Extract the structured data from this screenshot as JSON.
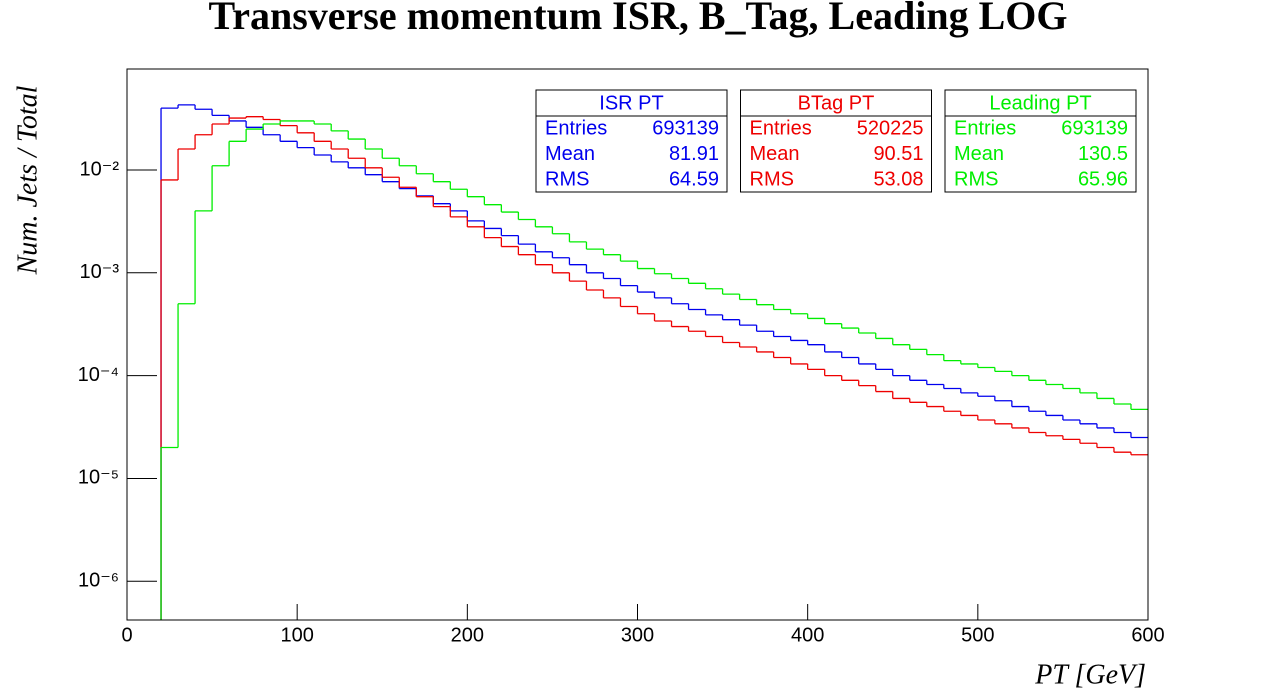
{
  "chart_data": {
    "type": "histogram",
    "title": "Transverse momentum ISR, B_Tag, Leading LOG",
    "x_label": "PT [GeV]",
    "y_label": "Num. Jets / Total",
    "log_y": true,
    "xlim": [
      0,
      600
    ],
    "xticks": [
      0,
      100,
      200,
      300,
      400,
      500,
      600
    ],
    "ylim": [
      4.2e-07,
      0.096
    ],
    "yticks": [
      {
        "value": 1e-06,
        "label": "10⁻⁶"
      },
      {
        "value": 1e-05,
        "label": "10⁻⁵"
      },
      {
        "value": 0.0001,
        "label": "10⁻⁴"
      },
      {
        "value": 0.001,
        "label": "10⁻³"
      },
      {
        "value": 0.01,
        "label": "10⁻²"
      }
    ],
    "stats_labels": [
      "Entries",
      "Mean",
      "RMS"
    ],
    "bins": [
      0,
      10,
      20,
      30,
      40,
      50,
      60,
      70,
      80,
      90,
      100,
      110,
      120,
      130,
      140,
      150,
      160,
      170,
      180,
      190,
      200,
      210,
      220,
      230,
      240,
      250,
      260,
      270,
      280,
      290,
      300,
      310,
      320,
      330,
      340,
      350,
      360,
      370,
      380,
      390,
      400,
      410,
      420,
      430,
      440,
      450,
      460,
      470,
      480,
      490,
      500,
      510,
      520,
      530,
      540,
      550,
      560,
      570,
      580,
      590,
      600
    ],
    "series": [
      {
        "name": "ISR PT",
        "color": "#0000ee",
        "stats": [
          693139,
          81.91,
          64.59
        ],
        "values": [
          null,
          null,
          0.04,
          0.043,
          0.039,
          0.034,
          0.03,
          0.026,
          0.022,
          0.019,
          0.0165,
          0.014,
          0.012,
          0.0105,
          0.009,
          0.0077,
          0.0066,
          0.0056,
          0.0047,
          0.004,
          0.0032,
          0.0027,
          0.0023,
          0.0019,
          0.0016,
          0.0014,
          0.0012,
          0.001,
          0.00088,
          0.00075,
          0.00065,
          0.00057,
          0.0005,
          0.00044,
          0.00039,
          0.00035,
          0.00031,
          0.00027,
          0.00024,
          0.00022,
          0.0002,
          0.00017,
          0.00015,
          0.00013,
          0.000115,
          0.0001,
          9e-05,
          8.2e-05,
          7.5e-05,
          6.8e-05,
          6.3e-05,
          5.7e-05,
          5e-05,
          4.5e-05,
          4.1e-05,
          3.7e-05,
          3.4e-05,
          3.1e-05,
          2.8e-05,
          2.5e-05
        ]
      },
      {
        "name": "BTag PT",
        "color": "#ee0000",
        "stats": [
          520225,
          90.51,
          53.08
        ],
        "values": [
          null,
          null,
          0.008,
          0.016,
          0.022,
          0.028,
          0.032,
          0.033,
          0.031,
          0.027,
          0.023,
          0.019,
          0.016,
          0.013,
          0.0105,
          0.0085,
          0.0068,
          0.0055,
          0.0044,
          0.0035,
          0.0028,
          0.0022,
          0.0018,
          0.0015,
          0.0012,
          0.001,
          0.00083,
          0.00068,
          0.00057,
          0.00047,
          0.0004,
          0.00034,
          0.0003,
          0.00027,
          0.00024,
          0.00021,
          0.00019,
          0.00017,
          0.00015,
          0.00013,
          0.000115,
          0.0001,
          9e-05,
          8e-05,
          7e-05,
          6e-05,
          5.5e-05,
          5e-05,
          4.5e-05,
          4.1e-05,
          3.7e-05,
          3.4e-05,
          3.1e-05,
          2.8e-05,
          2.6e-05,
          2.4e-05,
          2.2e-05,
          2e-05,
          1.8e-05,
          1.7e-05
        ]
      },
      {
        "name": "Leading PT",
        "color": "#00ee00",
        "stats": [
          693139,
          130.5,
          65.96
        ],
        "values": [
          null,
          null,
          2e-05,
          0.0005,
          0.004,
          0.011,
          0.019,
          0.025,
          0.028,
          0.03,
          0.03,
          0.028,
          0.024,
          0.02,
          0.016,
          0.013,
          0.011,
          0.0092,
          0.0077,
          0.0065,
          0.0055,
          0.0046,
          0.0039,
          0.0033,
          0.0028,
          0.0024,
          0.002,
          0.0017,
          0.0015,
          0.0013,
          0.0011,
          0.00098,
          0.00088,
          0.00079,
          0.0007,
          0.00062,
          0.00055,
          0.00049,
          0.00044,
          0.0004,
          0.00036,
          0.00032,
          0.00029,
          0.00026,
          0.00023,
          0.0002,
          0.00018,
          0.00016,
          0.00014,
          0.00013,
          0.00012,
          0.00011,
          0.0001,
          9e-05,
          8.2e-05,
          7.5e-05,
          6.8e-05,
          6e-05,
          5.3e-05,
          4.7e-05
        ]
      }
    ]
  }
}
